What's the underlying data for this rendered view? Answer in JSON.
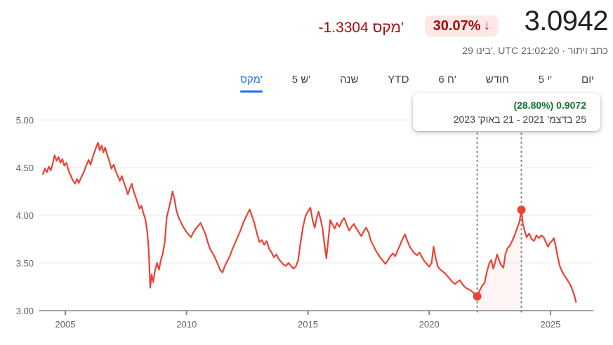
{
  "header": {
    "price": "3.0942",
    "change_text": "-1.3304 מקס'",
    "change_percent": "30.07%",
    "down_arrow": "↓",
    "caption_prefix": "29 בינו', UTC 21:02:20 · ",
    "disclaimer": "כתב ויתור",
    "colors": {
      "change_red": "#a50e0e",
      "pill_bg": "#fce8e6",
      "price_text": "#202124"
    }
  },
  "tabs": [
    {
      "id": "day",
      "label": "יום",
      "selected": false
    },
    {
      "id": "5d",
      "label": "5 י'",
      "selected": false
    },
    {
      "id": "month",
      "label": "חודש",
      "selected": false
    },
    {
      "id": "6m",
      "label": "6 ח'",
      "selected": false
    },
    {
      "id": "ytd",
      "label": "YTD",
      "selected": false
    },
    {
      "id": "1y",
      "label": "שנה",
      "selected": false
    },
    {
      "id": "5y",
      "label": "5 ש'",
      "selected": false
    },
    {
      "id": "max",
      "label": "מקס'",
      "selected": true
    }
  ],
  "tooltip": {
    "value": "0.9072",
    "percent": "(28.80%)",
    "date_range": "25 בדצמ' 2021 - 21 באוק' 2023",
    "value_color": "#137333"
  },
  "chart_data": {
    "type": "line",
    "line_color": "#ea4335",
    "selection_fill": "rgba(234,67,53,0.055)",
    "grid_color": "#e8eaed",
    "axis_color": "#80868b",
    "label_color": "#5f6368",
    "y_axis": {
      "min": 3.0,
      "max": 5.0,
      "ticks": [
        "3.00",
        "3.50",
        "4.00",
        "4.50",
        "5.00"
      ]
    },
    "x_axis": {
      "ticks": [
        2005,
        2010,
        2015,
        2020,
        2025
      ]
    },
    "markers": [
      {
        "year": 2021.98,
        "value": 3.15
      },
      {
        "year": 2023.8,
        "value": 4.0572
      }
    ],
    "points": [
      [
        2004.08,
        4.43
      ],
      [
        2004.16,
        4.49
      ],
      [
        2004.24,
        4.45
      ],
      [
        2004.32,
        4.51
      ],
      [
        2004.4,
        4.47
      ],
      [
        2004.48,
        4.54
      ],
      [
        2004.56,
        4.63
      ],
      [
        2004.64,
        4.57
      ],
      [
        2004.72,
        4.61
      ],
      [
        2004.8,
        4.55
      ],
      [
        2004.88,
        4.59
      ],
      [
        2004.96,
        4.52
      ],
      [
        2005.05,
        4.55
      ],
      [
        2005.13,
        4.47
      ],
      [
        2005.22,
        4.42
      ],
      [
        2005.3,
        4.37
      ],
      [
        2005.4,
        4.33
      ],
      [
        2005.48,
        4.38
      ],
      [
        2005.56,
        4.34
      ],
      [
        2005.66,
        4.4
      ],
      [
        2005.76,
        4.45
      ],
      [
        2005.86,
        4.52
      ],
      [
        2005.96,
        4.58
      ],
      [
        2006.04,
        4.53
      ],
      [
        2006.12,
        4.6
      ],
      [
        2006.2,
        4.66
      ],
      [
        2006.28,
        4.72
      ],
      [
        2006.35,
        4.76
      ],
      [
        2006.42,
        4.68
      ],
      [
        2006.5,
        4.73
      ],
      [
        2006.57,
        4.66
      ],
      [
        2006.64,
        4.71
      ],
      [
        2006.72,
        4.64
      ],
      [
        2006.8,
        4.58
      ],
      [
        2006.9,
        4.49
      ],
      [
        2007.0,
        4.53
      ],
      [
        2007.08,
        4.46
      ],
      [
        2007.17,
        4.41
      ],
      [
        2007.25,
        4.36
      ],
      [
        2007.33,
        4.41
      ],
      [
        2007.42,
        4.34
      ],
      [
        2007.5,
        4.28
      ],
      [
        2007.58,
        4.22
      ],
      [
        2007.66,
        4.28
      ],
      [
        2007.74,
        4.33
      ],
      [
        2007.82,
        4.25
      ],
      [
        2007.9,
        4.19
      ],
      [
        2007.98,
        4.13
      ],
      [
        2008.06,
        4.07
      ],
      [
        2008.14,
        4.1
      ],
      [
        2008.22,
        4.02
      ],
      [
        2008.3,
        3.96
      ],
      [
        2008.38,
        3.82
      ],
      [
        2008.44,
        3.62
      ],
      [
        2008.5,
        3.24
      ],
      [
        2008.56,
        3.38
      ],
      [
        2008.62,
        3.3
      ],
      [
        2008.7,
        3.42
      ],
      [
        2008.78,
        3.5
      ],
      [
        2008.86,
        3.43
      ],
      [
        2008.94,
        3.53
      ],
      [
        2009.02,
        3.6
      ],
      [
        2009.1,
        3.72
      ],
      [
        2009.18,
        3.98
      ],
      [
        2009.26,
        4.06
      ],
      [
        2009.34,
        4.15
      ],
      [
        2009.42,
        4.25
      ],
      [
        2009.5,
        4.17
      ],
      [
        2009.58,
        4.05
      ],
      [
        2009.68,
        3.97
      ],
      [
        2009.78,
        3.92
      ],
      [
        2009.88,
        3.87
      ],
      [
        2009.98,
        3.83
      ],
      [
        2010.08,
        3.8
      ],
      [
        2010.18,
        3.77
      ],
      [
        2010.28,
        3.82
      ],
      [
        2010.38,
        3.86
      ],
      [
        2010.48,
        3.89
      ],
      [
        2010.58,
        3.92
      ],
      [
        2010.68,
        3.86
      ],
      [
        2010.78,
        3.8
      ],
      [
        2010.88,
        3.71
      ],
      [
        2010.98,
        3.64
      ],
      [
        2011.08,
        3.6
      ],
      [
        2011.18,
        3.55
      ],
      [
        2011.28,
        3.49
      ],
      [
        2011.38,
        3.43
      ],
      [
        2011.48,
        3.4
      ],
      [
        2011.58,
        3.47
      ],
      [
        2011.68,
        3.52
      ],
      [
        2011.78,
        3.57
      ],
      [
        2011.88,
        3.64
      ],
      [
        2011.98,
        3.7
      ],
      [
        2012.1,
        3.77
      ],
      [
        2012.22,
        3.84
      ],
      [
        2012.35,
        3.93
      ],
      [
        2012.48,
        4.0
      ],
      [
        2012.6,
        4.06
      ],
      [
        2012.7,
        3.99
      ],
      [
        2012.8,
        3.91
      ],
      [
        2012.9,
        3.81
      ],
      [
        2013.0,
        3.72
      ],
      [
        2013.1,
        3.74
      ],
      [
        2013.2,
        3.69
      ],
      [
        2013.3,
        3.73
      ],
      [
        2013.4,
        3.65
      ],
      [
        2013.5,
        3.61
      ],
      [
        2013.6,
        3.56
      ],
      [
        2013.7,
        3.59
      ],
      [
        2013.8,
        3.54
      ],
      [
        2013.9,
        3.51
      ],
      [
        2014.0,
        3.48
      ],
      [
        2014.1,
        3.47
      ],
      [
        2014.2,
        3.5
      ],
      [
        2014.3,
        3.47
      ],
      [
        2014.4,
        3.44
      ],
      [
        2014.5,
        3.46
      ],
      [
        2014.6,
        3.53
      ],
      [
        2014.7,
        3.72
      ],
      [
        2014.8,
        3.88
      ],
      [
        2014.9,
        3.99
      ],
      [
        2015.0,
        4.04
      ],
      [
        2015.1,
        4.08
      ],
      [
        2015.2,
        3.94
      ],
      [
        2015.28,
        3.87
      ],
      [
        2015.36,
        3.97
      ],
      [
        2015.44,
        4.04
      ],
      [
        2015.52,
        3.96
      ],
      [
        2015.6,
        3.87
      ],
      [
        2015.68,
        3.7
      ],
      [
        2015.76,
        3.55
      ],
      [
        2015.84,
        3.74
      ],
      [
        2015.92,
        3.95
      ],
      [
        2016.0,
        3.91
      ],
      [
        2016.1,
        3.86
      ],
      [
        2016.2,
        3.92
      ],
      [
        2016.3,
        3.88
      ],
      [
        2016.4,
        3.94
      ],
      [
        2016.5,
        3.97
      ],
      [
        2016.6,
        3.9
      ],
      [
        2016.7,
        3.84
      ],
      [
        2016.8,
        3.88
      ],
      [
        2016.9,
        3.91
      ],
      [
        2017.0,
        3.86
      ],
      [
        2017.1,
        3.82
      ],
      [
        2017.2,
        3.78
      ],
      [
        2017.3,
        3.83
      ],
      [
        2017.4,
        3.87
      ],
      [
        2017.5,
        3.82
      ],
      [
        2017.6,
        3.73
      ],
      [
        2017.7,
        3.68
      ],
      [
        2017.8,
        3.63
      ],
      [
        2017.9,
        3.59
      ],
      [
        2018.0,
        3.55
      ],
      [
        2018.1,
        3.52
      ],
      [
        2018.2,
        3.49
      ],
      [
        2018.3,
        3.53
      ],
      [
        2018.4,
        3.57
      ],
      [
        2018.5,
        3.6
      ],
      [
        2018.6,
        3.57
      ],
      [
        2018.7,
        3.63
      ],
      [
        2018.8,
        3.69
      ],
      [
        2018.9,
        3.75
      ],
      [
        2019.0,
        3.8
      ],
      [
        2019.1,
        3.73
      ],
      [
        2019.2,
        3.67
      ],
      [
        2019.3,
        3.63
      ],
      [
        2019.4,
        3.6
      ],
      [
        2019.5,
        3.58
      ],
      [
        2019.6,
        3.61
      ],
      [
        2019.7,
        3.56
      ],
      [
        2019.8,
        3.52
      ],
      [
        2019.9,
        3.49
      ],
      [
        2020.0,
        3.46
      ],
      [
        2020.1,
        3.5
      ],
      [
        2020.18,
        3.67
      ],
      [
        2020.26,
        3.56
      ],
      [
        2020.36,
        3.46
      ],
      [
        2020.46,
        3.43
      ],
      [
        2020.56,
        3.41
      ],
      [
        2020.66,
        3.39
      ],
      [
        2020.76,
        3.36
      ],
      [
        2020.86,
        3.33
      ],
      [
        2020.96,
        3.3
      ],
      [
        2021.06,
        3.28
      ],
      [
        2021.16,
        3.3
      ],
      [
        2021.26,
        3.32
      ],
      [
        2021.36,
        3.28
      ],
      [
        2021.46,
        3.25
      ],
      [
        2021.56,
        3.23
      ],
      [
        2021.66,
        3.22
      ],
      [
        2021.76,
        3.2
      ],
      [
        2021.86,
        3.18
      ],
      [
        2021.98,
        3.15
      ],
      [
        2022.08,
        3.21
      ],
      [
        2022.18,
        3.26
      ],
      [
        2022.28,
        3.29
      ],
      [
        2022.38,
        3.41
      ],
      [
        2022.48,
        3.5
      ],
      [
        2022.56,
        3.53
      ],
      [
        2022.64,
        3.44
      ],
      [
        2022.72,
        3.51
      ],
      [
        2022.8,
        3.59
      ],
      [
        2022.88,
        3.53
      ],
      [
        2022.96,
        3.48
      ],
      [
        2023.06,
        3.45
      ],
      [
        2023.14,
        3.59
      ],
      [
        2023.22,
        3.65
      ],
      [
        2023.32,
        3.68
      ],
      [
        2023.42,
        3.73
      ],
      [
        2023.52,
        3.79
      ],
      [
        2023.62,
        3.86
      ],
      [
        2023.72,
        3.93
      ],
      [
        2023.8,
        4.06
      ],
      [
        2023.86,
        3.91
      ],
      [
        2023.94,
        3.83
      ],
      [
        2024.02,
        3.77
      ],
      [
        2024.12,
        3.81
      ],
      [
        2024.22,
        3.75
      ],
      [
        2024.32,
        3.73
      ],
      [
        2024.42,
        3.79
      ],
      [
        2024.52,
        3.76
      ],
      [
        2024.62,
        3.79
      ],
      [
        2024.72,
        3.77
      ],
      [
        2024.82,
        3.71
      ],
      [
        2024.9,
        3.67
      ],
      [
        2024.98,
        3.71
      ],
      [
        2025.06,
        3.73
      ],
      [
        2025.14,
        3.76
      ],
      [
        2025.22,
        3.67
      ],
      [
        2025.3,
        3.56
      ],
      [
        2025.38,
        3.47
      ],
      [
        2025.46,
        3.42
      ],
      [
        2025.54,
        3.38
      ],
      [
        2025.62,
        3.35
      ],
      [
        2025.72,
        3.31
      ],
      [
        2025.82,
        3.27
      ],
      [
        2025.9,
        3.22
      ],
      [
        2025.98,
        3.16
      ],
      [
        2026.05,
        3.09
      ]
    ]
  }
}
